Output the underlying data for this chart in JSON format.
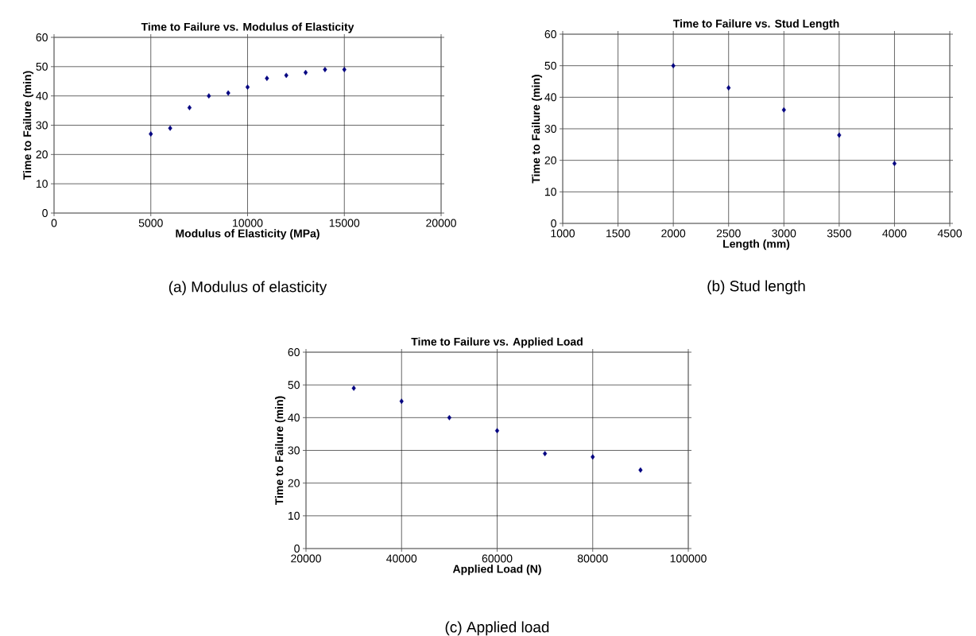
{
  "chart_data": [
    {
      "type": "scatter",
      "title": "Time to Failure vs. Modulus of Elasticity",
      "xlabel": "Modulus of Elasticity (MPa)",
      "ylabel": "Time to Failure (min)",
      "x": [
        5000,
        6000,
        7000,
        8000,
        9000,
        10000,
        11000,
        12000,
        13000,
        14000,
        15000
      ],
      "values": [
        27,
        29,
        36,
        40,
        41,
        43,
        46,
        47,
        48,
        49,
        49
      ],
      "color": "#000080",
      "marker": "diamond",
      "xlim": [
        0,
        20000
      ],
      "xticks": [
        0,
        5000,
        10000,
        15000,
        20000
      ],
      "ylim": [
        0,
        60
      ],
      "yticks": [
        0,
        10,
        20,
        30,
        40,
        50,
        60
      ],
      "grid": true,
      "annotations": [
        "(a) Modulus of elasticity"
      ]
    },
    {
      "type": "scatter",
      "title": "Time to Failure vs. Stud Length",
      "xlabel": "Length (mm)",
      "ylabel": "Time to Failure (min)",
      "x": [
        2000,
        2500,
        3000,
        3500,
        4000
      ],
      "values": [
        50,
        43,
        36,
        28,
        19
      ],
      "color": "#000080",
      "marker": "diamond",
      "xlim": [
        1000,
        4500
      ],
      "xticks": [
        1000,
        1500,
        2000,
        2500,
        3000,
        3500,
        4000,
        4500
      ],
      "ylim": [
        0,
        60
      ],
      "yticks": [
        0,
        10,
        20,
        30,
        40,
        50,
        60
      ],
      "grid": true,
      "annotations": [
        "(b) Stud length"
      ]
    },
    {
      "type": "scatter",
      "title": "Time to Failure vs. Applied Load",
      "xlabel": "Applied Load (N)",
      "ylabel": "Time to Failure (min)",
      "x": [
        30000,
        40000,
        50000,
        60000,
        70000,
        80000,
        90000
      ],
      "values": [
        49,
        45,
        40,
        36,
        29,
        28,
        24
      ],
      "color": "#000080",
      "marker": "diamond",
      "xlim": [
        20000,
        100000
      ],
      "xticks": [
        20000,
        40000,
        60000,
        80000,
        100000
      ],
      "ylim": [
        0,
        60
      ],
      "yticks": [
        0,
        10,
        20,
        30,
        40,
        50,
        60
      ],
      "grid": true,
      "annotations": [
        "(c) Applied load"
      ]
    }
  ]
}
